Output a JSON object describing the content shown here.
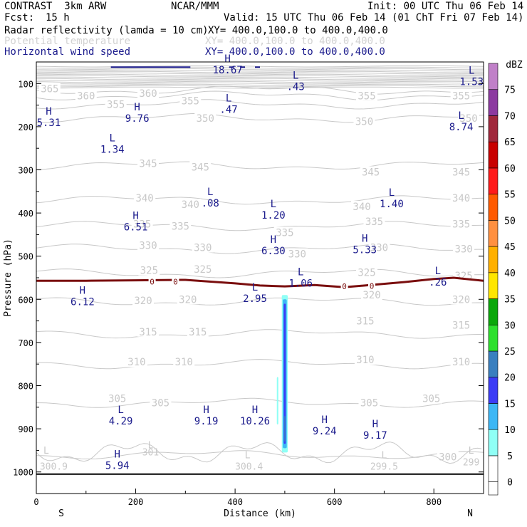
{
  "header": {
    "model": "CONTRAST  3km ARW",
    "org": "NCAR/MMM",
    "init": "Init: 00 UTC Thu 06 Feb 14",
    "fcst_label": "Fcst:",
    "fcst_value": "15 h",
    "valid": "Valid: 15 UTC Thu 06 Feb 14 (01 ChT Fri 07 Feb 14)",
    "fields": [
      {
        "name": "Radar reflectivity (lamda = 10 cm)",
        "xy": "XY= 400.0,100.0 to 400.0,400.0"
      },
      {
        "name": "Potential temperature",
        "xy": "XY= 400.0,100.0 to 400.0,400.0"
      },
      {
        "name": "Horizontal wind speed",
        "xy": "XY= 400.0,100.0 to 400.0,400.0"
      }
    ]
  },
  "colors": {
    "theta": "#c8c8c8",
    "wind": "#1a1a8c",
    "freezing": "#7a0e0e",
    "ground": "#000000"
  },
  "chart_data": {
    "type": "cross-section",
    "xlabel": "Distance (km)",
    "ylabel": "Pressure (hPa)",
    "xlim": [
      0,
      900
    ],
    "ylim": [
      1050,
      50
    ],
    "x_ticks": [
      0,
      200,
      400,
      600,
      800
    ],
    "y_ticks": [
      100,
      200,
      300,
      400,
      500,
      600,
      700,
      800,
      900,
      1000
    ],
    "end_labels": {
      "left": "S",
      "right": "N"
    },
    "theta_contours": [
      {
        "value": "365",
        "pressure": 115,
        "labels": [
          [
            27,
            112
          ]
        ]
      },
      {
        "value": "360",
        "pressure": 128,
        "labels": [
          [
            100,
            128
          ],
          [
            225,
            123
          ]
        ]
      },
      {
        "value": "355",
        "pressure": 148,
        "labels": [
          [
            160,
            148
          ],
          [
            310,
            140
          ],
          [
            665,
            128
          ],
          [
            855,
            128
          ]
        ]
      },
      {
        "value": "350",
        "pressure": 180,
        "labels": [
          [
            340,
            180
          ],
          [
            660,
            188
          ],
          [
            870,
            180
          ]
        ]
      },
      {
        "value": "345",
        "pressure": 290,
        "labels": [
          [
            225,
            285
          ],
          [
            330,
            293
          ],
          [
            673,
            305
          ],
          [
            855,
            305
          ]
        ]
      },
      {
        "value": "340",
        "pressure": 370,
        "labels": [
          [
            218,
            365
          ],
          [
            310,
            380
          ],
          [
            655,
            385
          ],
          [
            855,
            365
          ]
        ]
      },
      {
        "value": "335",
        "pressure": 430,
        "labels": [
          [
            213,
            425
          ],
          [
            290,
            430
          ],
          [
            500,
            445
          ],
          [
            680,
            420
          ],
          [
            855,
            425
          ]
        ]
      },
      {
        "value": "330",
        "pressure": 483,
        "labels": [
          [
            225,
            475
          ],
          [
            335,
            480
          ],
          [
            525,
            495
          ],
          [
            690,
            480
          ],
          [
            860,
            483
          ]
        ]
      },
      {
        "value": "325",
        "pressure": 540,
        "labels": [
          [
            227,
            533
          ],
          [
            335,
            530
          ],
          [
            665,
            538
          ],
          [
            860,
            545
          ]
        ]
      },
      {
        "value": "320",
        "pressure": 605,
        "labels": [
          [
            215,
            603
          ],
          [
            305,
            600
          ],
          [
            675,
            590
          ],
          [
            855,
            600
          ]
        ]
      },
      {
        "value": "315",
        "pressure": 680,
        "labels": [
          [
            225,
            675
          ],
          [
            325,
            675
          ],
          [
            662,
            650
          ],
          [
            855,
            660
          ]
        ]
      },
      {
        "value": "310",
        "pressure": 750,
        "labels": [
          [
            202,
            745
          ],
          [
            297,
            745
          ],
          [
            662,
            740
          ],
          [
            855,
            745
          ]
        ]
      },
      {
        "value": "305",
        "pressure": 840,
        "labels": [
          [
            163,
            830
          ],
          [
            250,
            840
          ],
          [
            670,
            840
          ],
          [
            795,
            830
          ]
        ]
      },
      {
        "value": "300",
        "pressure": 960,
        "labels": [
          [
            828,
            965
          ]
        ]
      }
    ],
    "surface_theta_labels": [
      {
        "text": "300.9",
        "x": 35,
        "p": 995
      },
      {
        "text": "301",
        "x": 230,
        "p": 962
      },
      {
        "text": "300.4",
        "x": 428,
        "p": 995
      },
      {
        "text": "299.5",
        "x": 700,
        "p": 995
      },
      {
        "text": "299",
        "x": 875,
        "p": 985
      }
    ],
    "surface_theta_marks": [
      {
        "type": "L",
        "x": 20,
        "p": 958
      },
      {
        "type": "L",
        "x": 230,
        "p": 945
      },
      {
        "type": "L",
        "x": 425,
        "p": 968
      },
      {
        "type": "L",
        "x": 700,
        "p": 968
      },
      {
        "type": "L",
        "x": 875,
        "p": 958
      }
    ],
    "freezing_level": {
      "label": "0",
      "points": [
        [
          0,
          557
        ],
        [
          100,
          557
        ],
        [
          200,
          556
        ],
        [
          300,
          555
        ],
        [
          400,
          563
        ],
        [
          450,
          568
        ],
        [
          500,
          570
        ],
        [
          560,
          567
        ],
        [
          620,
          572
        ],
        [
          680,
          566
        ],
        [
          740,
          560
        ],
        [
          800,
          553
        ],
        [
          840,
          550
        ],
        [
          900,
          557
        ]
      ],
      "label_positions": [
        [
          233,
          559
        ],
        [
          280,
          559
        ],
        [
          620,
          570
        ],
        [
          675,
          569
        ]
      ]
    },
    "wind_speed_extrema": [
      {
        "type": "H",
        "value": "18.67",
        "x": 385,
        "p": 73
      },
      {
        "type": "L",
        "value": ".43",
        "x": 522,
        "p": 112
      },
      {
        "type": "L",
        "value": "1.53",
        "x": 876,
        "p": 100
      },
      {
        "type": "L",
        "value": ".47",
        "x": 387,
        "p": 165
      },
      {
        "type": "H",
        "value": "9.76",
        "x": 203,
        "p": 185
      },
      {
        "type": "H",
        "value": "5.31",
        "x": 25,
        "p": 195
      },
      {
        "type": "L",
        "value": "8.74",
        "x": 855,
        "p": 205
      },
      {
        "type": "L",
        "value": "1.34",
        "x": 153,
        "p": 257
      },
      {
        "type": "L",
        "value": ".08",
        "x": 350,
        "p": 382
      },
      {
        "type": "L",
        "value": "1.20",
        "x": 477,
        "p": 410
      },
      {
        "type": "L",
        "value": "1.40",
        "x": 715,
        "p": 383
      },
      {
        "type": "H",
        "value": "6.51",
        "x": 200,
        "p": 437
      },
      {
        "type": "H",
        "value": "6.30",
        "x": 477,
        "p": 492
      },
      {
        "type": "H",
        "value": "5.33",
        "x": 661,
        "p": 490
      },
      {
        "type": "L",
        "value": "1.06",
        "x": 532,
        "p": 567
      },
      {
        "type": "L",
        "value": ".26",
        "x": 808,
        "p": 565
      },
      {
        "type": "H",
        "value": "6.12",
        "x": 93,
        "p": 610
      },
      {
        "type": "L",
        "value": "2.95",
        "x": 440,
        "p": 603
      },
      {
        "type": "L",
        "value": "4.29",
        "x": 170,
        "p": 887
      },
      {
        "type": "H",
        "value": "9.19",
        "x": 342,
        "p": 887
      },
      {
        "type": "H",
        "value": "10.26",
        "x": 440,
        "p": 887
      },
      {
        "type": "H",
        "value": "9.24",
        "x": 580,
        "p": 910
      },
      {
        "type": "H",
        "value": "9.17",
        "x": 682,
        "p": 920
      },
      {
        "type": "H",
        "value": "5.94",
        "x": 163,
        "p": 990
      }
    ],
    "reflectivity_column": {
      "x_center": 500,
      "p_top": 590,
      "p_bottom": 955,
      "cells": [
        {
          "dbz": 5,
          "x0": 494,
          "x1": 506,
          "p_top": 590,
          "p_bottom": 955
        },
        {
          "dbz": 10,
          "x0": 496,
          "x1": 504,
          "p_top": 600,
          "p_bottom": 945
        },
        {
          "dbz": 15,
          "x0": 498,
          "x1": 502,
          "p_top": 610,
          "p_bottom": 935
        },
        {
          "dbz": 20,
          "x0": 499,
          "x1": 501,
          "p_top": 870,
          "p_bottom": 930
        },
        {
          "dbz": 5,
          "x0": 484,
          "x1": 487,
          "p_top": 780,
          "p_bottom": 890
        }
      ]
    },
    "colorbar": {
      "label": "dBZ",
      "levels": [
        0,
        5,
        10,
        15,
        20,
        25,
        30,
        35,
        40,
        45,
        50,
        55,
        60,
        65,
        70,
        75
      ],
      "colors": [
        "#ffffff",
        "#8ffff5",
        "#3db7f5",
        "#3c3cf5",
        "#3a7fbf",
        "#2de02d",
        "#0aa70a",
        "#ffe600",
        "#ffb000",
        "#ff9040",
        "#ff5a00",
        "#ff1a1a",
        "#c80000",
        "#a0283c",
        "#8c3aa0",
        "#c080c8"
      ]
    }
  }
}
